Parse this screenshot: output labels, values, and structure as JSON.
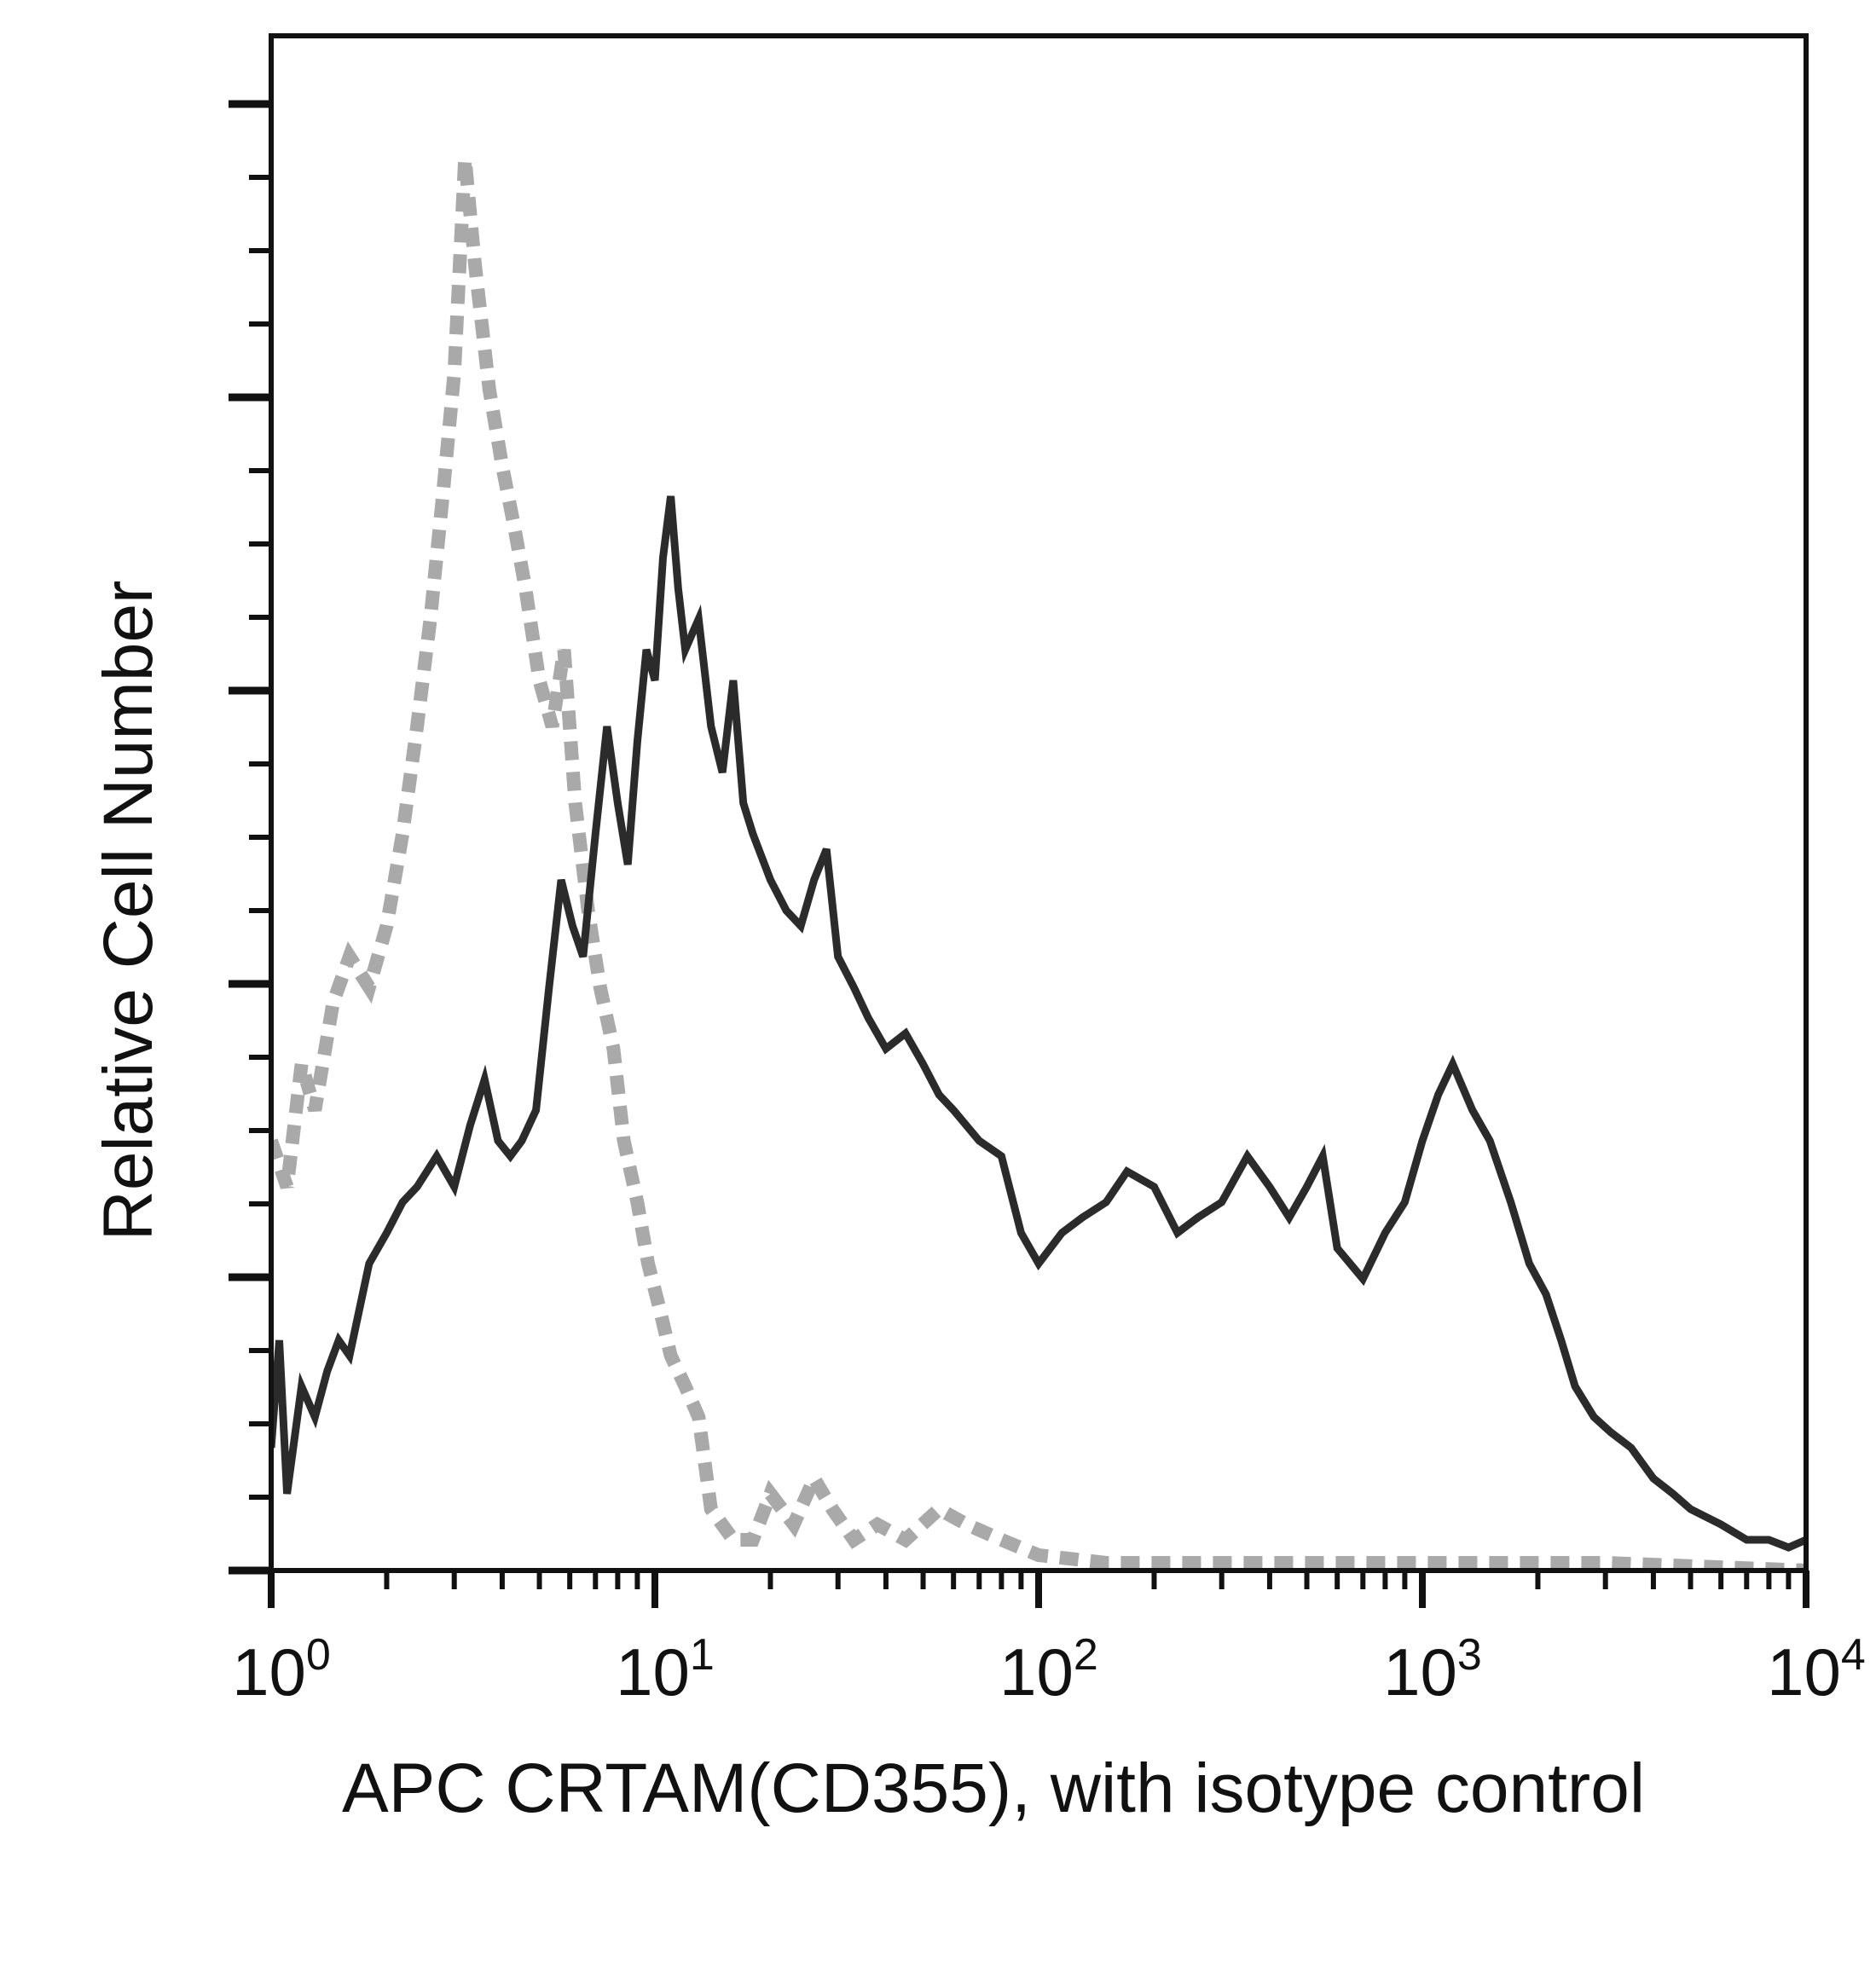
{
  "chart_data": {
    "type": "line",
    "title": "",
    "xlabel": "APC CRTAM(CD355), with isotype control",
    "ylabel": "Relative Cell Number",
    "x_scale": "log",
    "xlim": [
      1,
      10000
    ],
    "ylim": [
      0,
      100
    ],
    "x_tick_labels": [
      {
        "base": "10",
        "exp": "0",
        "value": 1
      },
      {
        "base": "10",
        "exp": "1",
        "value": 10
      },
      {
        "base": "10",
        "exp": "2",
        "value": 100
      },
      {
        "base": "10",
        "exp": "3",
        "value": 1000
      },
      {
        "base": "10",
        "exp": "4",
        "value": 10000
      }
    ],
    "y_ticks_labeled": false,
    "grid": false,
    "legend": "none",
    "series": [
      {
        "role": "isotype control",
        "style": "dashed",
        "color": "#a9a9a9",
        "x": [
          1.0,
          1.1,
          1.2,
          1.3,
          1.45,
          1.6,
          1.8,
          2.0,
          2.2,
          2.4,
          2.6,
          2.8,
          3.0,
          3.2,
          3.4,
          3.7,
          4.0,
          4.3,
          4.6,
          5.0,
          5.4,
          5.8,
          6.2,
          6.7,
          7.2,
          7.8,
          8.3,
          9.0,
          9.6,
          10.3,
          11.0,
          12.0,
          13.0,
          14.0,
          16.0,
          18.0,
          20.0,
          23.0,
          26.0,
          29.0,
          33.0,
          38.0,
          45.0,
          55.0,
          65.0,
          80.0,
          100.0,
          150.0,
          300.0,
          1000.0,
          3000.0,
          10000.0
        ],
        "y": [
          28,
          25,
          33,
          30,
          37,
          40,
          38,
          42,
          48,
          55,
          62,
          70,
          78,
          92,
          85,
          77,
          72,
          68,
          64,
          58,
          55,
          60,
          50,
          43,
          38,
          34,
          28,
          24,
          20,
          17,
          14,
          12,
          10,
          4,
          2,
          2,
          5,
          3,
          6,
          4,
          2,
          3,
          2,
          4,
          3,
          2,
          1,
          0.5,
          0.5,
          0.5,
          0.5,
          0
        ]
      },
      {
        "role": "APC CRTAM(CD355)",
        "style": "solid",
        "color": "#2b2b2b",
        "x": [
          1.0,
          1.05,
          1.1,
          1.2,
          1.3,
          1.4,
          1.5,
          1.6,
          1.8,
          2.0,
          2.2,
          2.4,
          2.7,
          3.0,
          3.3,
          3.6,
          3.9,
          4.2,
          4.5,
          4.9,
          5.3,
          5.7,
          6.1,
          6.5,
          7.0,
          7.5,
          8.0,
          8.5,
          9.0,
          9.5,
          10.0,
          10.5,
          11.0,
          11.5,
          12.0,
          13.0,
          14.0,
          15.0,
          16.0,
          17.0,
          18.0,
          20.0,
          22.0,
          24.0,
          26.0,
          28.0,
          30.0,
          33.0,
          36.0,
          40.0,
          45.0,
          50.0,
          55.0,
          60.0,
          70.0,
          80.0,
          90.0,
          100.0,
          115.0,
          130.0,
          150.0,
          170.0,
          200.0,
          230.0,
          260.0,
          300.0,
          350.0,
          400.0,
          450.0,
          500.0,
          550.0,
          600.0,
          700.0,
          800.0,
          900.0,
          1000.0,
          1100.0,
          1200.0,
          1350.0,
          1500.0,
          1700.0,
          1900.0,
          2100.0,
          2300.0,
          2500.0,
          2800.0,
          3100.0,
          3500.0,
          4000.0,
          4500.0,
          5000.0,
          6000.0,
          7000.0,
          8000.0,
          9000.0,
          10000.0
        ],
        "y": [
          8,
          15,
          5,
          12,
          10,
          13,
          15,
          14,
          20,
          22,
          24,
          25,
          27,
          25,
          29,
          32,
          28,
          27,
          28,
          30,
          38,
          45,
          42,
          40,
          48,
          55,
          50,
          46,
          54,
          60,
          58,
          66,
          70,
          64,
          60,
          62,
          55,
          52,
          58,
          50,
          48,
          45,
          43,
          42,
          45,
          47,
          40,
          38,
          36,
          34,
          35,
          33,
          31,
          30,
          28,
          27,
          22,
          20,
          22,
          23,
          24,
          26,
          25,
          22,
          23,
          24,
          27,
          25,
          23,
          25,
          27,
          21,
          19,
          22,
          24,
          28,
          31,
          33,
          30,
          28,
          24,
          20,
          18,
          15,
          12,
          10,
          9,
          8,
          6,
          5,
          4,
          3,
          2,
          2,
          1.5,
          2
        ]
      }
    ]
  }
}
